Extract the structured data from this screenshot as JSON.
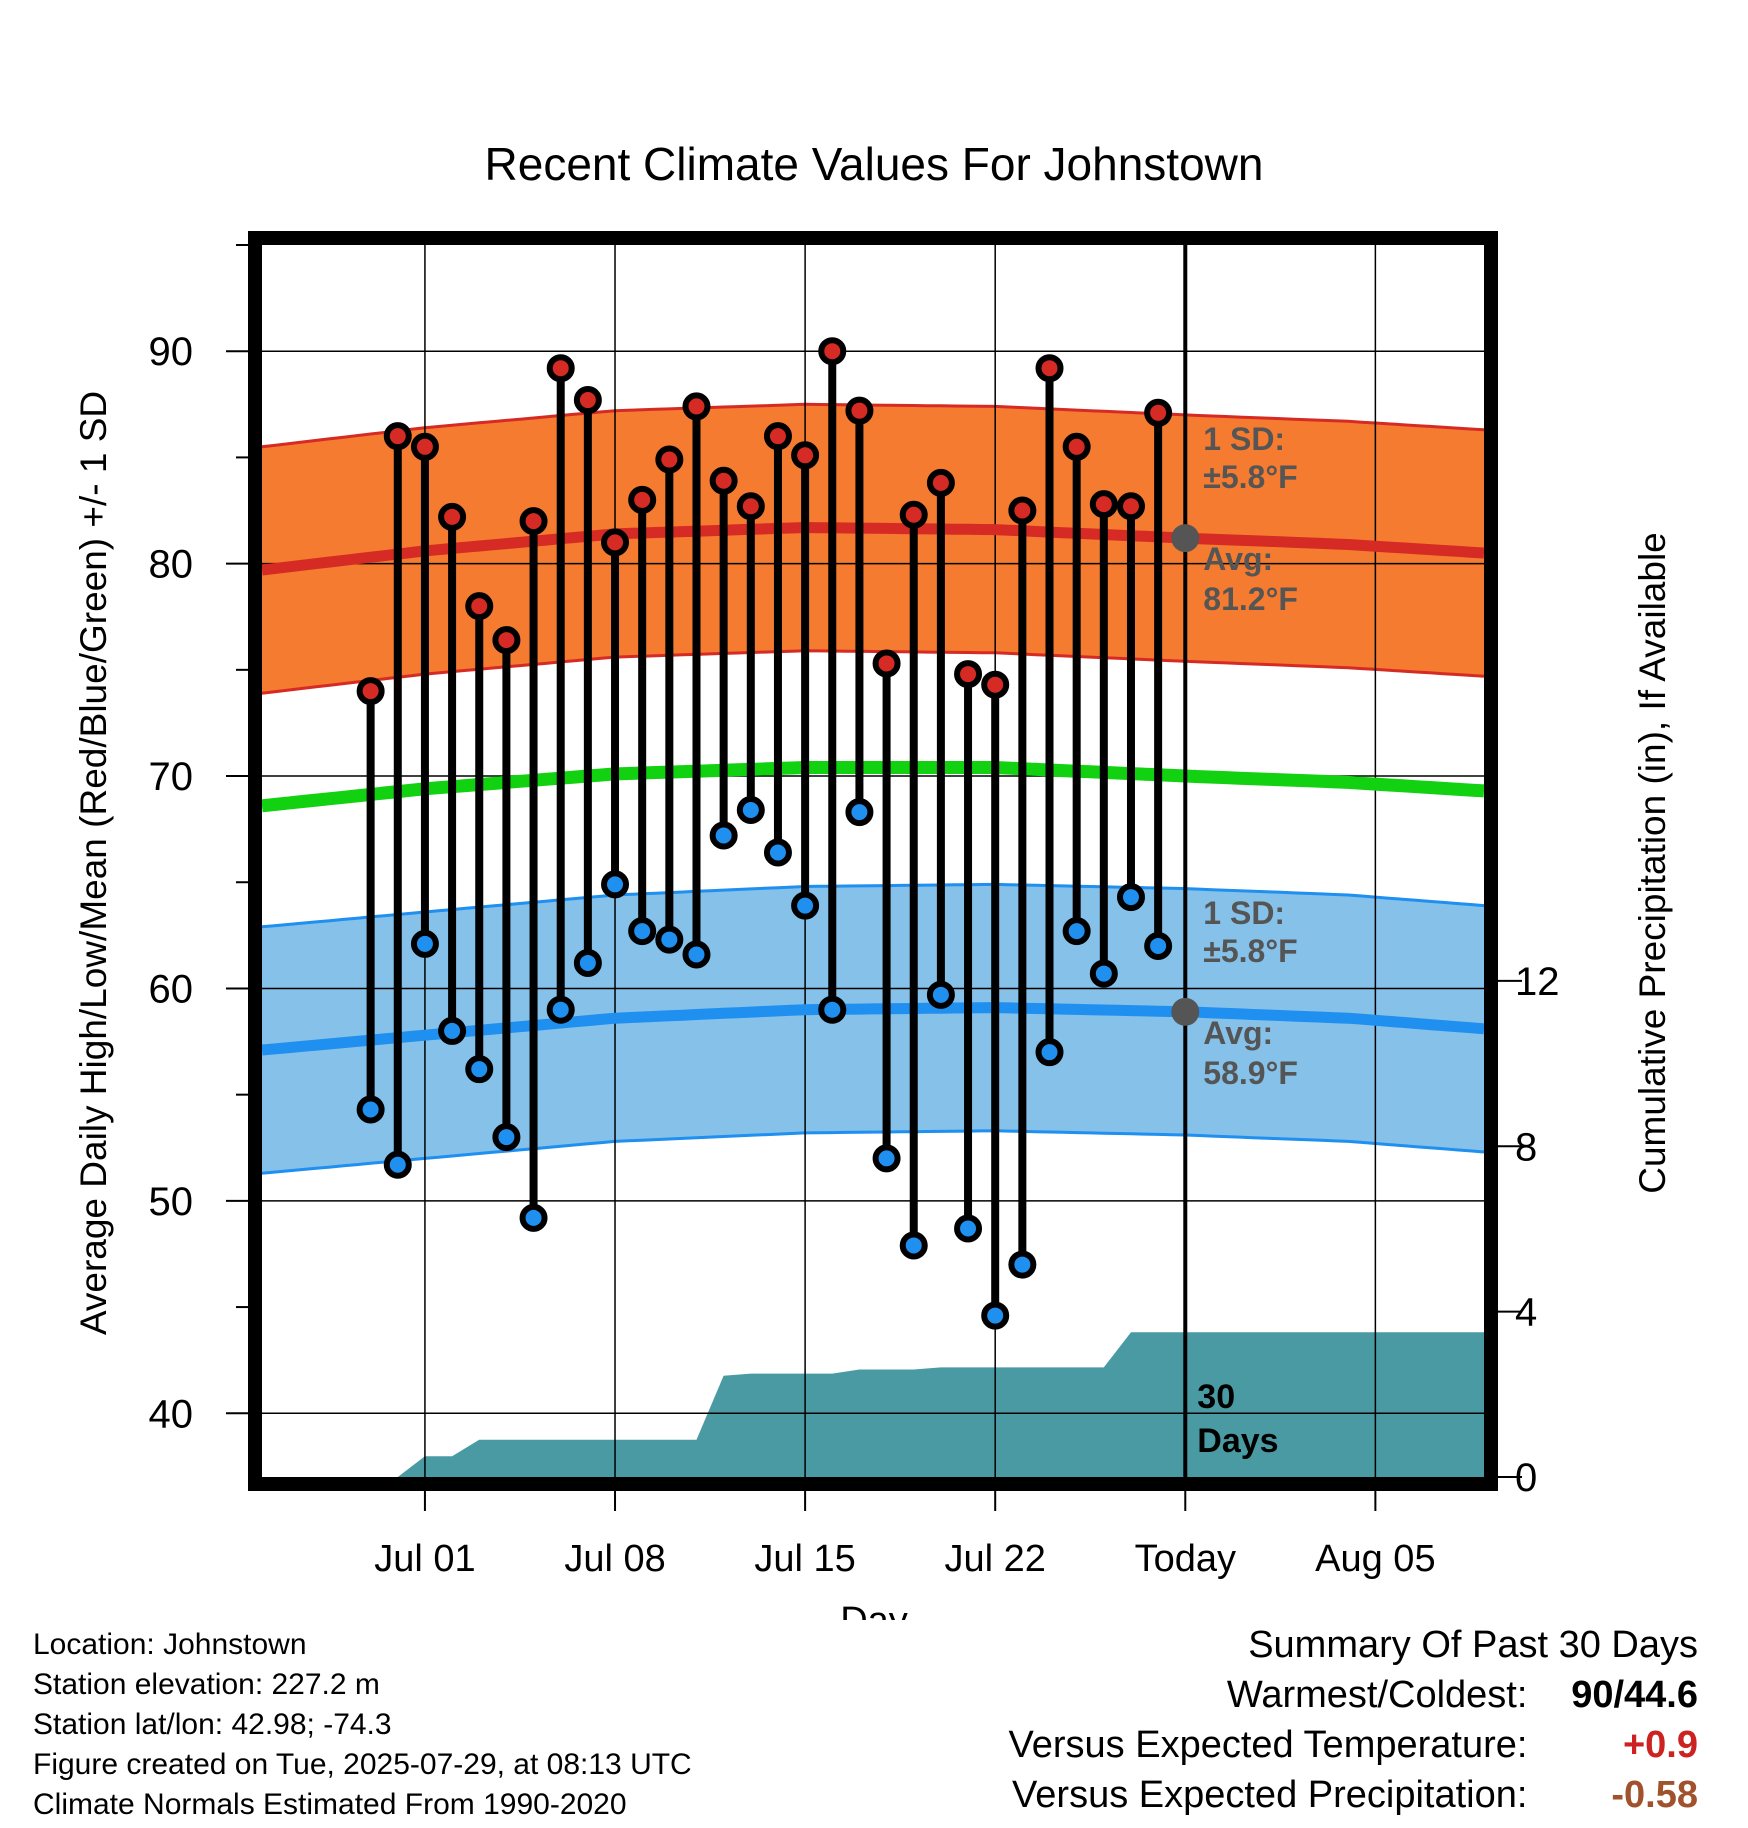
{
  "chart_data": {
    "type": "line",
    "title": "Recent Climate Values For Johnstown",
    "xlabel": "Day",
    "ylabel_left": "Average Daily High/Low/Mean (Red/Blue/Green) +/- 1 SD",
    "ylabel_right": "Cumulative Precipitation (in), If Available",
    "x_range_days": [
      -34,
      11
    ],
    "ylim_left": [
      37,
      95
    ],
    "ylim_right": [
      0,
      29.8
    ],
    "left_ticks": [
      40,
      50,
      60,
      70,
      80,
      90
    ],
    "right_ticks": [
      0,
      4,
      8,
      12
    ],
    "x_ticks": [
      {
        "day": -28,
        "label": "Jul 01"
      },
      {
        "day": -21,
        "label": "Jul 08"
      },
      {
        "day": -14,
        "label": "Jul 15"
      },
      {
        "day": -7,
        "label": "Jul 22"
      },
      {
        "day": 0,
        "label": "Today"
      },
      {
        "day": 7,
        "label": "Aug 05"
      }
    ],
    "highs": [
      74.0,
      86.0,
      85.5,
      82.2,
      78.0,
      76.4,
      82.0,
      89.2,
      87.7,
      81.0,
      83.0,
      84.9,
      87.4,
      83.9,
      82.7,
      86.0,
      85.1,
      90.0,
      87.2,
      75.3,
      82.3,
      83.8,
      74.8,
      74.3,
      82.5,
      89.2,
      85.5,
      82.8,
      82.7,
      87.1
    ],
    "lows": [
      54.3,
      51.7,
      62.1,
      58.0,
      56.2,
      53.0,
      49.2,
      59.0,
      61.2,
      64.9,
      62.7,
      62.3,
      61.6,
      67.2,
      68.4,
      66.4,
      63.9,
      59.0,
      68.3,
      52.0,
      47.9,
      59.7,
      48.7,
      44.6,
      47.0,
      57.0,
      62.7,
      60.7,
      64.3,
      62.0
    ],
    "normal_high": {
      "days": [
        -34,
        -28,
        -21,
        -14,
        -7,
        0,
        6,
        11
      ],
      "avg": [
        79.7,
        80.6,
        81.4,
        81.7,
        81.6,
        81.2,
        80.9,
        80.5
      ],
      "sd_label": "1 SD:",
      "sd_value": "±5.8°F",
      "avg_label": "Avg:",
      "avg_value": "81.2°F"
    },
    "normal_mean": {
      "days": [
        -34,
        -28,
        -21,
        -14,
        -7,
        0,
        6,
        11
      ],
      "avg": [
        68.6,
        69.4,
        70.1,
        70.4,
        70.4,
        70.0,
        69.7,
        69.3
      ]
    },
    "normal_low": {
      "days": [
        -34,
        -28,
        -21,
        -14,
        -7,
        0,
        6,
        11
      ],
      "avg": [
        57.1,
        57.8,
        58.6,
        59.0,
        59.1,
        58.9,
        58.6,
        58.1
      ],
      "sd_label": "1 SD:",
      "sd_value": "±5.8°F",
      "avg_label": "Avg:",
      "avg_value": "58.9°F"
    },
    "precip_cumulative": {
      "days": [
        -30,
        -29,
        -28,
        -27,
        -26,
        -25,
        -24,
        -23,
        -22,
        -21,
        -20,
        -19,
        -18,
        -17,
        -16,
        -15,
        -14,
        -13,
        -12,
        -11,
        -10,
        -9,
        -8,
        -7,
        -6,
        -5,
        -4,
        -3,
        -2,
        -1,
        0,
        11
      ],
      "values": [
        0.0,
        0.0,
        0.5,
        0.5,
        0.9,
        0.9,
        0.9,
        0.9,
        0.9,
        0.9,
        0.9,
        0.9,
        0.9,
        2.45,
        2.5,
        2.5,
        2.5,
        2.5,
        2.6,
        2.6,
        2.6,
        2.65,
        2.65,
        2.65,
        2.65,
        2.65,
        2.65,
        2.65,
        3.5,
        3.5,
        3.5,
        3.5
      ]
    },
    "today_label": "Today",
    "window_label_num": "30",
    "window_label_word": "Days"
  },
  "meta": {
    "location": "Location: Johnstown",
    "elevation": "Station elevation: 227.2 m",
    "latlon": "Station lat/lon: 42.98; -74.3",
    "created": "Figure created on Tue, 2025-07-29, at 08:13 UTC",
    "normals": "Climate Normals Estimated From 1990-2020"
  },
  "summary": {
    "title": "Summary Of Past 30 Days",
    "warm_cold_label": "Warmest/Coldest:",
    "warm_cold_value": "90/44.6",
    "temp_label": "Versus Expected Temperature:",
    "temp_value": "+0.9",
    "precip_label": "Versus Expected Precipitation:",
    "precip_value": "-0.58"
  },
  "colors": {
    "high_band": "#f47b30",
    "high_line": "#d62a24",
    "mean_line": "#11d111",
    "low_band": "#85c1e8",
    "low_line": "#1f8ff0",
    "precip": "#4a9aa4",
    "marker_gray": "#555555"
  }
}
